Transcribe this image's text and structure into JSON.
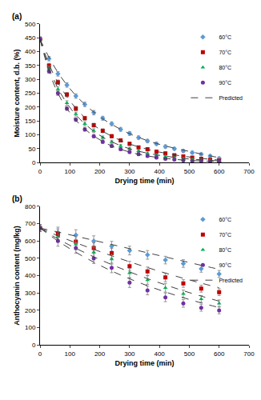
{
  "chart_data": [
    {
      "type": "scatter",
      "title": "(a)",
      "x_label": "Drying time (min)",
      "y_label": "Moisture content, d.b. (%)",
      "xlim": [
        0,
        700
      ],
      "xticks": [
        0,
        100,
        200,
        300,
        400,
        500,
        600,
        700
      ],
      "ylim": [
        0,
        500
      ],
      "yticks": [
        0,
        50,
        100,
        150,
        200,
        250,
        300,
        350,
        400,
        450,
        500
      ],
      "grid": false,
      "legend": "upper right",
      "series": [
        {
          "name": "60°C",
          "color": "#5b9bd5",
          "marker": "diamond",
          "x": [
            0,
            30,
            60,
            90,
            120,
            150,
            180,
            210,
            240,
            270,
            300,
            330,
            360,
            390,
            420,
            450,
            480,
            510,
            540,
            570,
            600
          ],
          "values": [
            445,
            375,
            320,
            280,
            240,
            210,
            180,
            160,
            140,
            120,
            105,
            90,
            78,
            68,
            58,
            50,
            42,
            36,
            30,
            24,
            15
          ],
          "error": [
            8,
            8,
            8,
            8,
            8,
            8,
            8,
            7,
            7,
            7,
            7,
            6,
            6,
            6,
            6,
            5,
            5,
            5,
            5,
            5,
            5
          ]
        },
        {
          "name": "70°C",
          "color": "#c00000",
          "marker": "square",
          "x": [
            0,
            30,
            60,
            90,
            120,
            150,
            180,
            210,
            240,
            270,
            300,
            330,
            360,
            390,
            420,
            450,
            480,
            510,
            540,
            570,
            600
          ],
          "values": [
            445,
            350,
            290,
            245,
            195,
            160,
            135,
            115,
            95,
            80,
            68,
            55,
            48,
            40,
            33,
            27,
            22,
            18,
            14,
            10,
            7
          ],
          "error": [
            8,
            8,
            8,
            8,
            8,
            7,
            7,
            7,
            6,
            6,
            6,
            5,
            5,
            5,
            5,
            4,
            4,
            4,
            4,
            4,
            4
          ]
        },
        {
          "name": "80°C",
          "color": "#00b050",
          "marker": "triangle-up",
          "x": [
            0,
            30,
            60,
            90,
            120,
            150,
            180,
            210,
            240,
            270,
            300,
            330,
            360,
            390,
            420,
            450,
            480,
            510,
            540,
            570,
            600
          ],
          "values": [
            445,
            340,
            265,
            215,
            175,
            140,
            115,
            90,
            75,
            60,
            50,
            42,
            33,
            27,
            22,
            17,
            14,
            11,
            9,
            7,
            5
          ],
          "error": [
            8,
            8,
            8,
            8,
            7,
            7,
            7,
            6,
            6,
            6,
            5,
            5,
            5,
            4,
            4,
            4,
            4,
            4,
            3,
            3,
            3
          ]
        },
        {
          "name": "90°C",
          "color": "#7030a0",
          "marker": "circle",
          "x": [
            0,
            30,
            60,
            90,
            120,
            150,
            180,
            210,
            240,
            270,
            300,
            330,
            360,
            390,
            420,
            450,
            480,
            510,
            540,
            570,
            600
          ],
          "values": [
            445,
            330,
            250,
            195,
            155,
            120,
            95,
            75,
            60,
            48,
            38,
            30,
            24,
            18,
            14,
            11,
            8,
            6,
            5,
            4,
            3
          ],
          "error": [
            8,
            8,
            8,
            7,
            7,
            7,
            6,
            6,
            6,
            5,
            5,
            5,
            4,
            4,
            4,
            3,
            3,
            3,
            3,
            3,
            3
          ]
        }
      ],
      "predicted": {
        "name": "Predicted",
        "color": "#404040",
        "line_style": "dashed",
        "curves": [
          {
            "x": [
              0,
              30,
              60,
              90,
              120,
              150,
              180,
              210,
              240,
              270,
              300,
              330,
              360,
              390,
              420,
              450,
              480,
              510,
              540,
              570,
              600
            ],
            "values": [
              445,
              380,
              325,
              280,
              242,
              210,
              182,
              158,
              138,
              120,
              104,
              91,
              79,
              69,
              60,
              52,
              45,
              38,
              31,
              24,
              18
            ]
          },
          {
            "x": [
              0,
              30,
              60,
              90,
              120,
              150,
              180,
              210,
              240,
              270,
              300,
              330,
              360,
              390,
              420,
              450,
              480,
              510,
              540,
              570,
              600
            ],
            "values": [
              445,
              355,
              288,
              238,
              196,
              162,
              135,
              113,
              95,
              80,
              67,
              57,
              48,
              40,
              34,
              28,
              23,
              19,
              15,
              12,
              9
            ]
          },
          {
            "x": [
              0,
              30,
              60,
              90,
              120,
              150,
              180,
              210,
              240,
              270,
              300,
              330,
              360,
              390,
              420,
              450,
              480,
              510,
              540,
              570,
              600
            ],
            "values": [
              445,
              342,
              268,
              214,
              172,
              140,
              113,
              92,
              75,
              61,
              50,
              41,
              34,
              28,
              23,
              19,
              15,
              12,
              10,
              8,
              6
            ]
          },
          {
            "x": [
              0,
              30,
              60,
              90,
              120,
              150,
              180,
              210,
              240,
              270,
              300,
              330,
              360,
              390,
              420,
              450,
              480,
              510,
              540,
              570,
              600
            ],
            "values": [
              445,
              330,
              250,
              195,
              153,
              121,
              96,
              76,
              60,
              48,
              38,
              30,
              24,
              19,
              15,
              12,
              9,
              7,
              6,
              5,
              4
            ]
          }
        ]
      }
    },
    {
      "type": "scatter",
      "title": "(b)",
      "x_label": "Drying time (min)",
      "y_label": "Anthocyanin content (mg/kg)",
      "xlim": [
        0,
        700
      ],
      "xticks": [
        0,
        100,
        200,
        300,
        400,
        500,
        600,
        700
      ],
      "ylim": [
        0,
        800
      ],
      "yticks": [
        0,
        100,
        200,
        300,
        400,
        500,
        600,
        700,
        800
      ],
      "grid": false,
      "legend": "upper right",
      "series": [
        {
          "name": "60°C",
          "color": "#5b9bd5",
          "marker": "diamond",
          "x": [
            0,
            60,
            120,
            180,
            240,
            300,
            360,
            420,
            480,
            540,
            600
          ],
          "values": [
            675,
            650,
            635,
            600,
            570,
            545,
            520,
            490,
            470,
            440,
            410
          ],
          "error": [
            20,
            30,
            30,
            30,
            28,
            25,
            25,
            22,
            22,
            20,
            20
          ]
        },
        {
          "name": "70°C",
          "color": "#c00000",
          "marker": "square",
          "x": [
            0,
            60,
            120,
            180,
            240,
            300,
            360,
            420,
            480,
            540,
            600
          ],
          "values": [
            675,
            640,
            595,
            560,
            530,
            455,
            425,
            390,
            355,
            325,
            305
          ],
          "error": [
            20,
            30,
            30,
            30,
            28,
            28,
            25,
            25,
            22,
            20,
            20
          ]
        },
        {
          "name": "80°C",
          "color": "#00b050",
          "marker": "triangle-up",
          "x": [
            0,
            60,
            120,
            180,
            240,
            300,
            360,
            420,
            480,
            540,
            600
          ],
          "values": [
            675,
            625,
            580,
            535,
            495,
            415,
            375,
            330,
            295,
            265,
            240
          ],
          "error": [
            20,
            30,
            30,
            30,
            28,
            28,
            25,
            25,
            22,
            20,
            20
          ]
        },
        {
          "name": "90°C",
          "color": "#7030a0",
          "marker": "circle",
          "x": [
            0,
            60,
            120,
            180,
            240,
            300,
            360,
            420,
            480,
            540,
            600
          ],
          "values": [
            675,
            600,
            560,
            500,
            445,
            360,
            315,
            275,
            240,
            215,
            200
          ],
          "error": [
            20,
            30,
            30,
            30,
            28,
            28,
            25,
            25,
            22,
            20,
            20
          ]
        }
      ],
      "predicted": {
        "name": "Predicted",
        "color": "#404040",
        "line_style": "dashed",
        "curves": [
          {
            "x": [
              0,
              60,
              120,
              180,
              240,
              300,
              360,
              420,
              480,
              540,
              600
            ],
            "values": [
              675,
              652,
              628,
              604,
              580,
              556,
              532,
              508,
              484,
              460,
              437
            ]
          },
          {
            "x": [
              0,
              60,
              120,
              180,
              240,
              300,
              360,
              420,
              480,
              540,
              600
            ],
            "values": [
              675,
              630,
              590,
              552,
              515,
              480,
              447,
              415,
              385,
              357,
              330
            ]
          },
          {
            "x": [
              0,
              60,
              120,
              180,
              240,
              300,
              360,
              420,
              480,
              540,
              600
            ],
            "values": [
              675,
              612,
              558,
              509,
              464,
              422,
              383,
              347,
              313,
              282,
              253
            ]
          },
          {
            "x": [
              0,
              60,
              120,
              180,
              240,
              300,
              360,
              420,
              480,
              540,
              600
            ],
            "values": [
              675,
              600,
              535,
              478,
              427,
              382,
              342,
              306,
              273,
              243,
              216
            ]
          }
        ]
      }
    }
  ]
}
